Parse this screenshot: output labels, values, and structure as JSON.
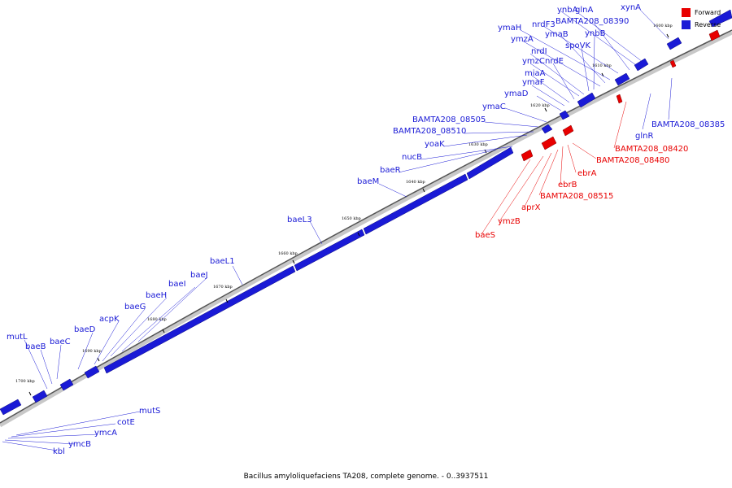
{
  "caption": "Bacillus amyloliquefaciens TA208, complete genome. - 0..3937511",
  "legend": {
    "forward": "Forward",
    "reverse": "Reverse",
    "forward_color": "#e80000",
    "reverse_color": "#1a1ad6"
  },
  "ticks": [
    "1600 kbp",
    "1610 kbp",
    "1620 kbp",
    "1630 kbp",
    "1640 kbp",
    "1650 kbp",
    "1660 kbp",
    "1670 kbp",
    "1680 kbp",
    "1690 kbp",
    "1700 kbp"
  ],
  "reverse_labels": [
    "xynA",
    "glnA",
    "ynbA",
    "BAMTA208_08390",
    "nrdF3",
    "ymaH",
    "ymaB",
    "ymzA",
    "ynbB",
    "spoVK",
    "nrdI",
    "ymzC",
    "nrdE",
    "miaA",
    "ymaF",
    "ymaD",
    "ymaC",
    "BAMTA208_08505",
    "BAMTA208_08510",
    "yoaK",
    "nucB",
    "baeR",
    "baeM",
    "baeL3",
    "baeL1",
    "baeJ",
    "baeI",
    "baeH",
    "baeG",
    "acpK",
    "baeD",
    "mutL",
    "baeB",
    "baeC",
    "glnR",
    "BAMTA208_08385",
    "mutS",
    "cotE",
    "ymcA",
    "ymcB",
    "kbl"
  ],
  "forward_labels": [
    "BAMTA208_08420",
    "BAMTA208_08480",
    "ebrA",
    "ebrB",
    "BAMTA208_08515",
    "aprX",
    "ymzB",
    "baeS"
  ]
}
